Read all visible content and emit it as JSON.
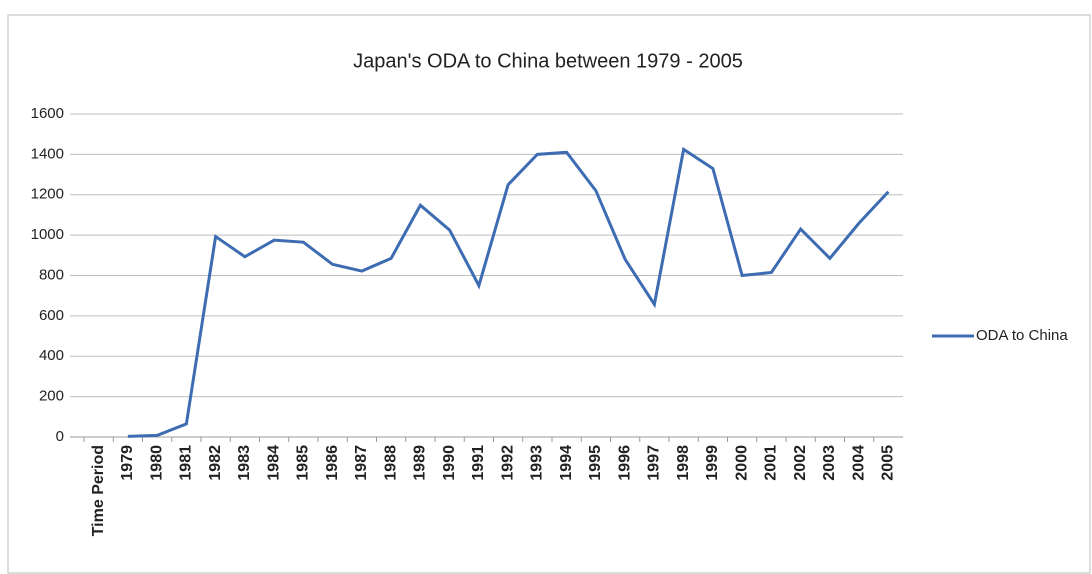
{
  "chart_data": {
    "type": "line",
    "title": "Japan's ODA to China between 1979 - 2005",
    "categories": [
      "Time Period",
      "1979",
      "1980",
      "1981",
      "1982",
      "1983",
      "1984",
      "1985",
      "1986",
      "1987",
      "1988",
      "1989",
      "1990",
      "1991",
      "1992",
      "1993",
      "1994",
      "1995",
      "1996",
      "1997",
      "1998",
      "1999",
      "2000",
      "2001",
      "2002",
      "2003",
      "2004",
      "2005"
    ],
    "series": [
      {
        "name": "ODA to China",
        "color": "#3d6cb3",
        "values": [
          null,
          3,
          8,
          65,
          993,
          893,
          975,
          965,
          855,
          822,
          885,
          1148,
          1025,
          750,
          1250,
          1400,
          1410,
          1220,
          880,
          657,
          1425,
          1330,
          800,
          815,
          1030,
          885,
          1060,
          1215
        ]
      }
    ],
    "ylim": [
      0,
      1600
    ],
    "yticks": [
      0,
      200,
      400,
      600,
      800,
      1000,
      1200,
      1400,
      1600
    ],
    "grid": true,
    "legend": "right"
  }
}
